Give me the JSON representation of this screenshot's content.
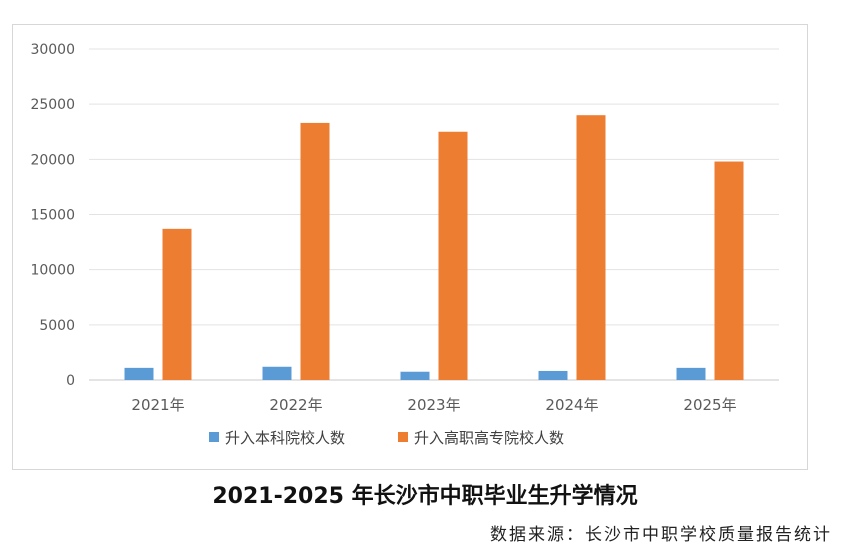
{
  "chart_data": {
    "type": "bar",
    "title": "2021-2025 年长沙市中职毕业生升学情况",
    "categories": [
      "2021年",
      "2022年",
      "2023年",
      "2024年",
      "2025年"
    ],
    "series": [
      {
        "name": "升入本科院校人数",
        "color": "#5b9bd5",
        "values": [
          1100,
          1200,
          750,
          820,
          1100
        ]
      },
      {
        "name": "升入高职高专院校人数",
        "color": "#ed7d31",
        "values": [
          13700,
          23300,
          22500,
          24000,
          19800
        ]
      }
    ],
    "yticks": [
      "0",
      "5000",
      "10000",
      "15000",
      "20000",
      "25000",
      "30000"
    ],
    "ylim": [
      0,
      30000
    ],
    "grid": true,
    "legend_position": "bottom"
  },
  "source": "数据来源：长沙市中职学校质量报告统计"
}
